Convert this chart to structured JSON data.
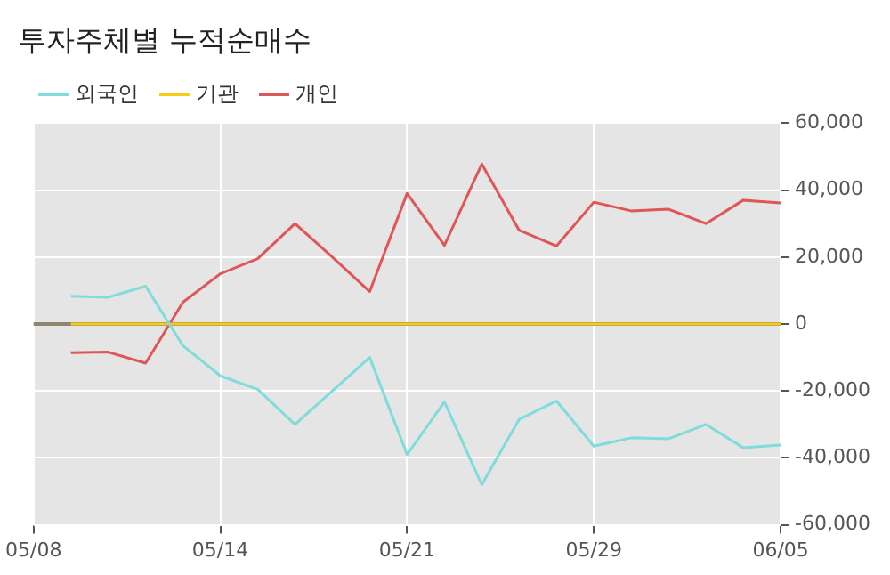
{
  "chart_data": {
    "type": "line",
    "title": "투자주체별 누적순매수",
    "categories": [
      "05/08",
      null,
      null,
      null,
      null,
      "05/14",
      null,
      null,
      null,
      null,
      "05/21",
      null,
      null,
      null,
      null,
      "05/29",
      null,
      null,
      null,
      null,
      "06/05"
    ],
    "series": [
      {
        "name": "외국인",
        "color": "#7fdcdc",
        "values": [
          null,
          8300,
          8000,
          11300,
          -6500,
          -15500,
          -19500,
          -30000,
          -20000,
          -10000,
          -39000,
          -23300,
          -48000,
          -28500,
          -23000,
          -36500,
          -34000,
          -34300,
          -30000,
          -37000,
          -36200
        ]
      },
      {
        "name": "기관",
        "color": "#f5cc1a",
        "values": [
          null,
          0,
          0,
          0,
          0,
          0,
          0,
          0,
          0,
          0,
          0,
          0,
          0,
          0,
          0,
          0,
          0,
          0,
          0,
          0,
          0
        ]
      },
      {
        "name": "개인",
        "color": "#e05555",
        "values": [
          null,
          -8600,
          -8400,
          -11700,
          6500,
          15000,
          19500,
          30000,
          20000,
          9700,
          39000,
          23500,
          47800,
          28000,
          23300,
          36400,
          33800,
          34300,
          30000,
          37000,
          36200
        ]
      }
    ],
    "ylim": [
      -60000,
      60000
    ],
    "yticks": [
      {
        "value": -60000,
        "label": "-60,000"
      },
      {
        "value": -40000,
        "label": "-40,000"
      },
      {
        "value": -20000,
        "label": "-20,000"
      },
      0,
      {
        "value": 20000,
        "label": "20,000"
      },
      {
        "value": 40000,
        "label": "40,000"
      },
      {
        "value": 60000,
        "label": "60,000"
      }
    ],
    "ref_lines": [
      {
        "axis": "y",
        "value": 0,
        "label": null,
        "color": "#8a8670"
      }
    ],
    "grid": true,
    "legend": "top left",
    "marker": "none",
    "line_style": "solid"
  }
}
